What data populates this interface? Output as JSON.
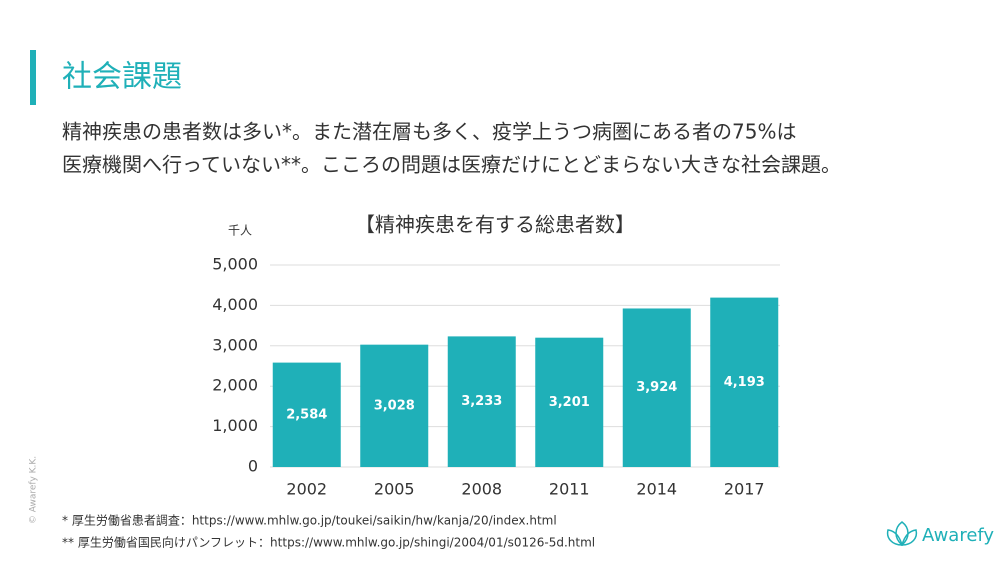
{
  "header": {
    "title": "社会課題"
  },
  "body": [
    "精神疾患の患者数は多い*。また潜在層も多く、疫学上うつ病圏にある者の75%は",
    "医療機関へ行っていない**。こころの問題は医療だけにとどまらない大きな社会課題。"
  ],
  "chart_data": {
    "type": "bar",
    "title": "【精神疾患を有する総患者数】",
    "y_label": "千人",
    "categories": [
      "2002",
      "2005",
      "2008",
      "2011",
      "2014",
      "2017"
    ],
    "values": [
      2584,
      3028,
      3233,
      3201,
      3924,
      4193
    ],
    "value_labels": [
      "2,584",
      "3,028",
      "3,233",
      "3,201",
      "3,924",
      "4,193"
    ],
    "color": "#1fb0b8",
    "ylim": [
      0,
      5000
    ],
    "yticks": [
      0,
      {
        "value": 1000,
        "label": "1,000"
      },
      {
        "value": 2000,
        "label": "2,000"
      },
      {
        "value": 3000,
        "label": "3,000"
      },
      {
        "value": 4000,
        "label": "4,000"
      },
      {
        "value": 5000,
        "label": "5,000"
      }
    ],
    "grid": true
  },
  "footnotes": [
    "*  厚生労働省患者調査：https://www.mhlw.go.jp/toukei/saikin/hw/kanja/20/index.html",
    "** 厚生労働省国民向けパンフレット：https://www.mhlw.go.jp/shingi/2004/01/s0126-5d.html"
  ],
  "logo": "Awarefy",
  "copyright": "© Awarefy K.K."
}
